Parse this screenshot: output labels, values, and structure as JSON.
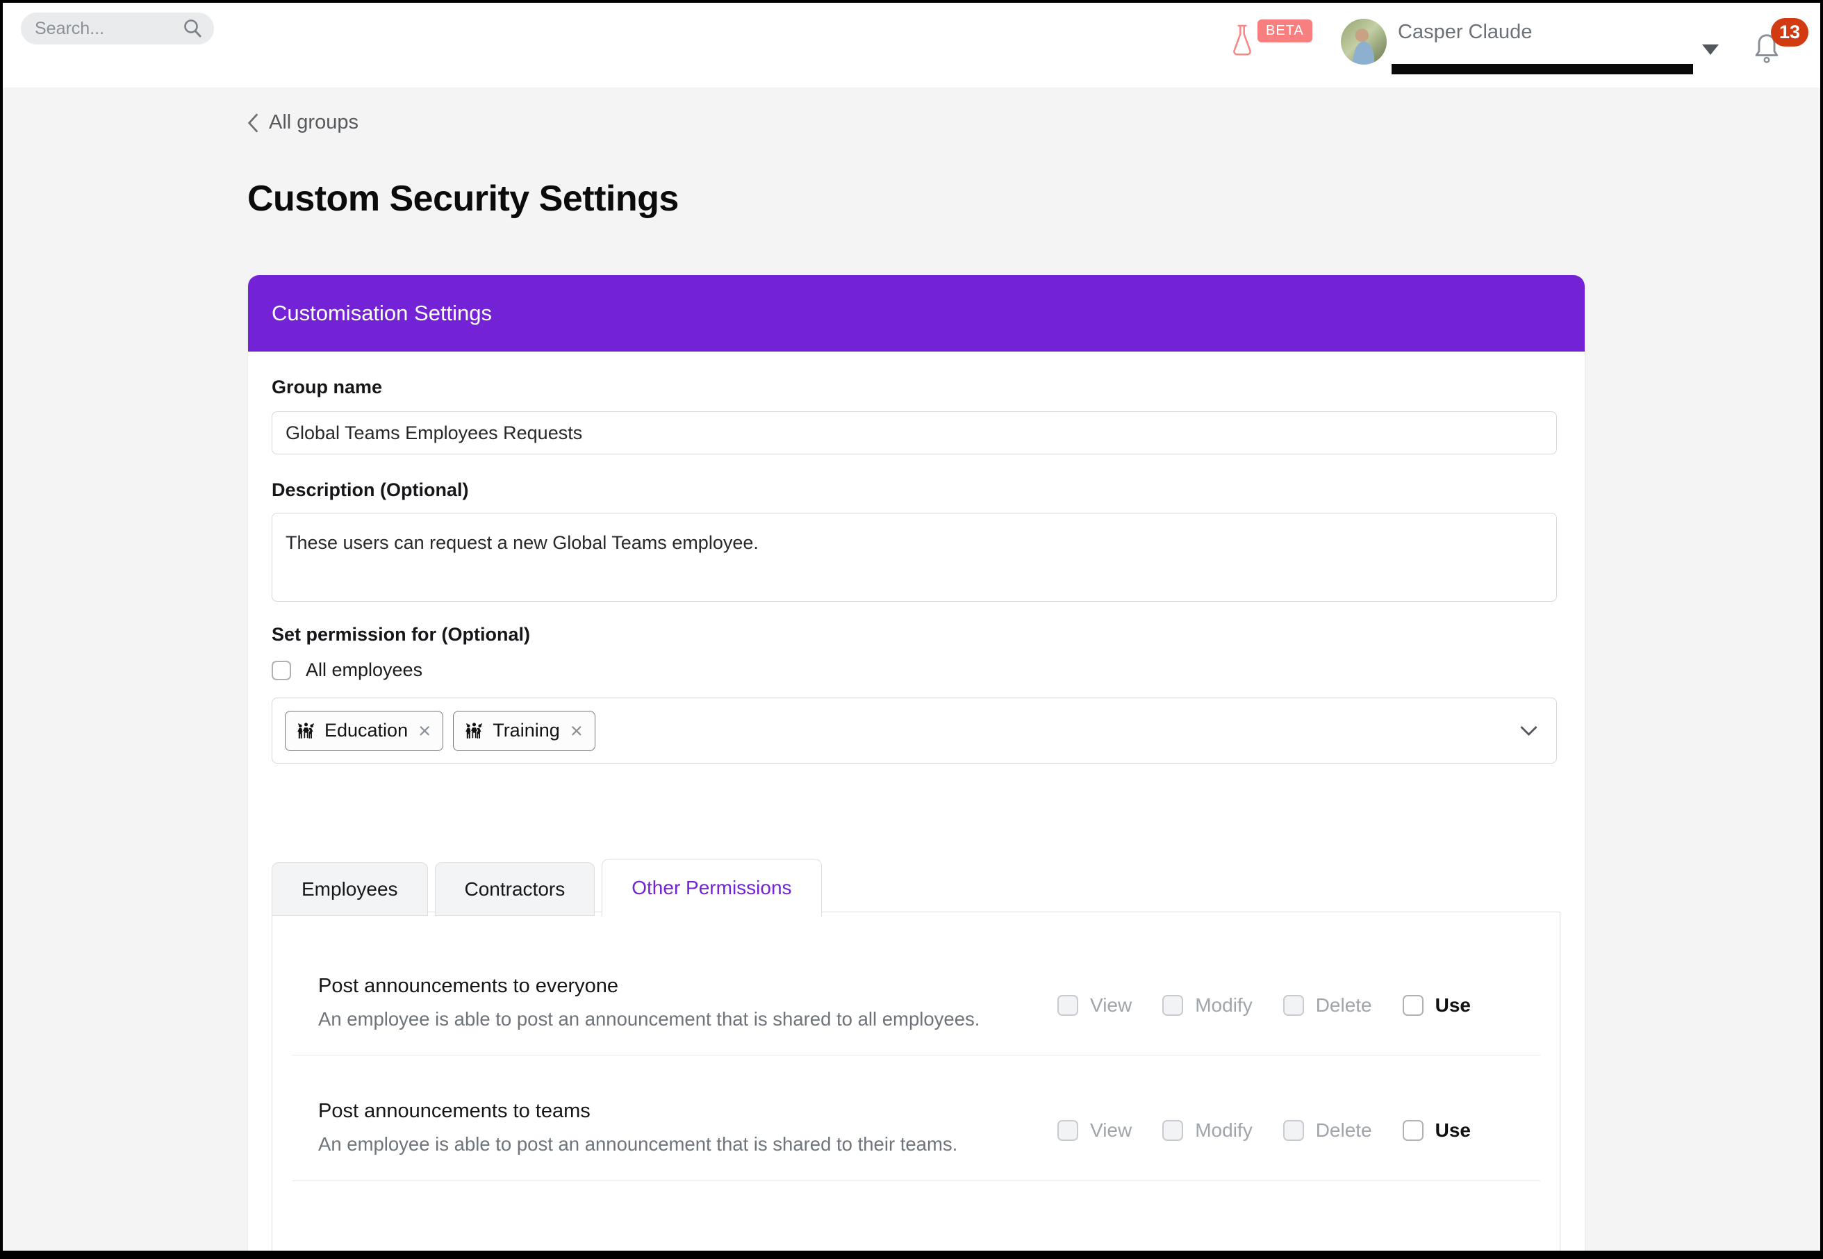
{
  "colors": {
    "accent_purple": "#7322D6",
    "tab_active_purple": "#7A2BDE",
    "salmon_beta": "#F87F7F",
    "badge_red": "#D23A12",
    "page_background": "#F4F4F5"
  },
  "topbar": {
    "search_placeholder": "Search...",
    "beta_label": "BETA",
    "user_name": "Casper Claude",
    "notification_count": "13",
    "icons": [
      "search-icon",
      "flask-icon",
      "avatar",
      "caret-down-icon",
      "bell-icon"
    ]
  },
  "page": {
    "breadcrumb_label": "All groups",
    "title": "Custom Security Settings"
  },
  "card": {
    "header": "Customisation Settings",
    "group_name": {
      "label": "Group name",
      "value": "Global Teams Employees Requests"
    },
    "description": {
      "label": "Description (Optional)",
      "value": "These users can request a new Global Teams employee."
    },
    "set_permission": {
      "label": "Set permission for (Optional)",
      "all_employees_label": "All employees",
      "all_employees_checked": false,
      "tags": [
        {
          "label": "Education",
          "icon": "people-group-icon"
        },
        {
          "label": "Training",
          "icon": "people-group-icon"
        }
      ]
    }
  },
  "tabs": [
    {
      "label": "Employees",
      "active": false
    },
    {
      "label": "Contractors",
      "active": false
    },
    {
      "label": "Other Permissions",
      "active": true
    }
  ],
  "permissions": [
    {
      "title": "Post announcements to everyone",
      "description": "An employee is able to post an announcement that is shared to all employees.",
      "options": [
        {
          "label": "View",
          "enabled": false,
          "checked": false
        },
        {
          "label": "Modify",
          "enabled": false,
          "checked": false
        },
        {
          "label": "Delete",
          "enabled": false,
          "checked": false
        },
        {
          "label": "Use",
          "enabled": true,
          "checked": false
        }
      ]
    },
    {
      "title": "Post announcements to teams",
      "description": "An employee is able to post an announcement that is shared to their teams.",
      "options": [
        {
          "label": "View",
          "enabled": false,
          "checked": false
        },
        {
          "label": "Modify",
          "enabled": false,
          "checked": false
        },
        {
          "label": "Delete",
          "enabled": false,
          "checked": false
        },
        {
          "label": "Use",
          "enabled": true,
          "checked": false
        }
      ]
    }
  ]
}
